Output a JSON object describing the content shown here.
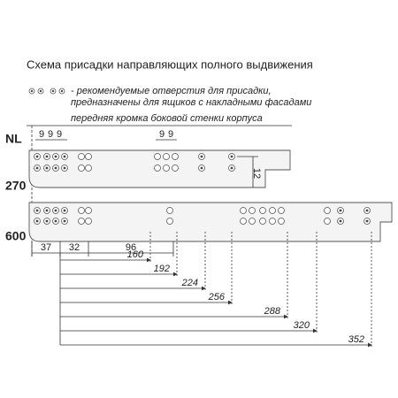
{
  "title": "Схема присадки направляющих полного выдвижения",
  "legend": {
    "lines": [
      "- рекомендуемые отверстия для присадки,",
      "предназначены для ящиков с накладными фасадами"
    ]
  },
  "edge_label": "передняя кромка боковой стенки корпуса",
  "labels": {
    "nl": "NL",
    "rail_short": "270",
    "rail_long": "600",
    "offset": "12"
  },
  "pitch_left": [
    "9",
    "9",
    "9"
  ],
  "pitch_mid": [
    "9",
    "9"
  ],
  "bottom_dims": [
    "37",
    "32",
    "96"
  ],
  "dims": [
    "160",
    "192",
    "224",
    "256",
    "288",
    "320",
    "352"
  ]
}
